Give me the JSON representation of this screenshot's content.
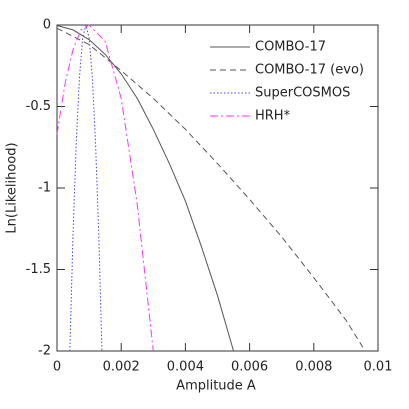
{
  "chart_data": {
    "type": "line",
    "xlabel": "Amplitude A",
    "ylabel": "Ln(Likelihood)",
    "xlim": [
      0,
      0.01
    ],
    "xticks": [
      0,
      0.002,
      0.004,
      0.006,
      0.008,
      0.01
    ],
    "ylim": [
      -2,
      0
    ],
    "yticks": [
      0,
      -0.5,
      -1,
      -1.5,
      -2
    ],
    "legend": "upper right",
    "series": [
      {
        "name": "COMBO-17",
        "color": "#555555",
        "dash": "solid",
        "x": [
          0,
          0.0005,
          0.001,
          0.0015,
          0.002,
          0.0025,
          0.003,
          0.0035,
          0.004,
          0.0045,
          0.005,
          0.0055
        ],
        "values": [
          -0.003,
          -0.03,
          -0.09,
          -0.18,
          -0.3,
          -0.45,
          -0.64,
          -0.85,
          -1.08,
          -1.36,
          -1.66,
          -2
        ]
      },
      {
        "name": "COMBO-17 (evo)",
        "color": "#555555",
        "dash": "dashed",
        "x": [
          0,
          0.001,
          0.002,
          0.003,
          0.004,
          0.005,
          0.006,
          0.007,
          0.008,
          0.009,
          0.0096
        ],
        "values": [
          -0.02,
          -0.12,
          -0.28,
          -0.45,
          -0.64,
          -0.85,
          -1.07,
          -1.3,
          -1.55,
          -1.81,
          -2
        ]
      },
      {
        "name": "SuperCOSMOS",
        "color": "#4444ff",
        "dash": "dotted",
        "x": [
          0.0004,
          0.0005,
          0.0006,
          0.0007,
          0.0008,
          0.0009,
          0.001,
          0.0011,
          0.0012,
          0.0013,
          0.0014
        ],
        "values": [
          -2,
          -1.28,
          -0.72,
          -0.32,
          -0.08,
          0,
          -0.08,
          -0.32,
          -0.72,
          -1.28,
          -2
        ]
      },
      {
        "name": "HRH*",
        "color": "#ff33ff",
        "dash": "dashdot",
        "x": [
          0,
          0.00025,
          0.0005,
          0.00075,
          0.001,
          0.0015,
          0.002,
          0.0025,
          0.003
        ],
        "values": [
          -0.67,
          -0.36,
          -0.15,
          -0.03,
          0,
          -0.1,
          -0.45,
          -1.1,
          -2
        ]
      }
    ]
  }
}
